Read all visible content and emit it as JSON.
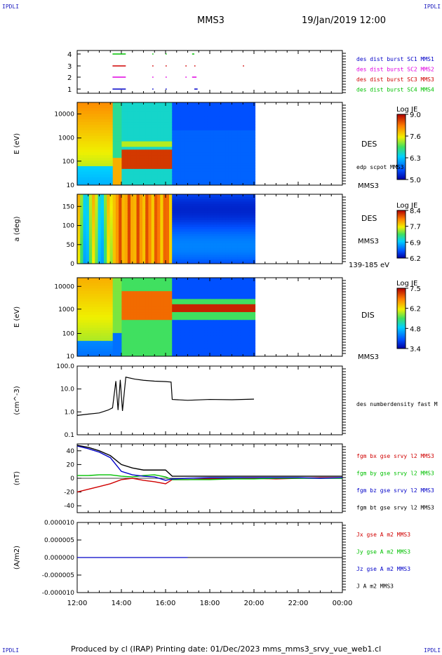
{
  "header": {
    "logo_left": "IPDLI",
    "logo_right": "IPDLI",
    "station": "MMS3",
    "datetime": "19/Jan/2019 12:00"
  },
  "footer": {
    "text": "Produced by cl (IRAP)   Printing date: 01/Dec/2023   mms_mms3_srvy_vue_web1.cl",
    "logo_left": "IPDLI",
    "logo_right": "IPDLI"
  },
  "colors": {
    "mms1": "#0000c8",
    "mms2": "#e000e0",
    "mms3": "#d00000",
    "mms4": "#00c000",
    "bx": "#d00000",
    "by": "#00c000",
    "bz": "#0000c8",
    "bt": "#000000"
  },
  "chart_data": [
    {
      "type": "scatter",
      "id": "burst",
      "yticks": [
        "1",
        "2",
        "3",
        "4"
      ],
      "legend": [
        "des dist burst SC1 MMS1",
        "des dist burst SC2 MMS2",
        "des dist burst SC3 MMS3",
        "des dist burst SC4 MMS4"
      ],
      "segments": [
        {
          "sc": 4,
          "start": 13.6,
          "end": 14.2
        },
        {
          "sc": 4,
          "start": 15.4,
          "end": 15.45
        },
        {
          "sc": 4,
          "start": 16.0,
          "end": 16.05
        },
        {
          "sc": 4,
          "start": 17.2,
          "end": 17.3
        },
        {
          "sc": 3,
          "start": 13.6,
          "end": 14.2
        },
        {
          "sc": 3,
          "start": 15.4,
          "end": 15.45
        },
        {
          "sc": 3,
          "start": 16.0,
          "end": 16.05
        },
        {
          "sc": 3,
          "start": 16.9,
          "end": 16.95
        },
        {
          "sc": 3,
          "start": 17.3,
          "end": 17.35
        },
        {
          "sc": 3,
          "start": 19.5,
          "end": 19.55
        },
        {
          "sc": 2,
          "start": 13.6,
          "end": 14.2
        },
        {
          "sc": 2,
          "start": 15.4,
          "end": 15.45
        },
        {
          "sc": 2,
          "start": 16.0,
          "end": 16.05
        },
        {
          "sc": 2,
          "start": 16.9,
          "end": 16.95
        },
        {
          "sc": 2,
          "start": 17.2,
          "end": 17.4
        },
        {
          "sc": 1,
          "start": 13.6,
          "end": 14.2
        },
        {
          "sc": 1,
          "start": 15.4,
          "end": 15.45
        },
        {
          "sc": 1,
          "start": 16.0,
          "end": 16.05
        },
        {
          "sc": 1,
          "start": 17.3,
          "end": 17.45
        }
      ]
    },
    {
      "type": "heatmap",
      "id": "des_energy",
      "ylabel": "E (eV)",
      "yticks": [
        "10",
        "100",
        "1000",
        "10000"
      ],
      "colorbar": {
        "title": "Log JE",
        "ticks": [
          "9.0",
          "7.6",
          "6.3",
          "5.0"
        ]
      },
      "right_labels": [
        "DES",
        "MMS3",
        "edp scpot MMS3"
      ]
    },
    {
      "type": "heatmap",
      "id": "des_pitch",
      "ylabel": "a (deg)",
      "yticks": [
        "0",
        "50",
        "100",
        "150"
      ],
      "colorbar": {
        "title": "Log JE",
        "ticks": [
          "8.4",
          "7.7",
          "6.9",
          "6.2"
        ]
      },
      "right_labels": [
        "DES",
        "MMS3",
        "139-185 eV"
      ]
    },
    {
      "type": "heatmap",
      "id": "dis_energy",
      "ylabel": "E (eV)",
      "yticks": [
        "10",
        "100",
        "1000",
        "10000"
      ],
      "colorbar": {
        "title": "Log JE",
        "ticks": [
          "7.5",
          "6.2",
          "4.8",
          "3.4"
        ]
      },
      "right_labels": [
        "DIS",
        "MMS3"
      ]
    },
    {
      "type": "line",
      "id": "density",
      "ylabel": "(cm^-3)",
      "yticks": [
        "0.1",
        "1.0",
        "10.0",
        "100.0"
      ],
      "ylim": [
        0.1,
        100
      ],
      "legend": [
        "des numberdensity fast M"
      ],
      "x": [
        12.0,
        12.5,
        13.0,
        13.4,
        13.6,
        13.75,
        13.85,
        13.95,
        14.05,
        14.2,
        14.6,
        15.0,
        15.5,
        16.0,
        16.25,
        16.3,
        17.0,
        18.0,
        19.0,
        20.0
      ],
      "y": [
        0.7,
        0.8,
        0.9,
        1.2,
        1.5,
        22,
        1.2,
        25,
        1.1,
        33,
        27,
        24,
        22,
        21,
        20,
        3.5,
        3.2,
        3.5,
        3.4,
        3.6
      ]
    },
    {
      "type": "line",
      "id": "fgm",
      "ylabel": "(nT)",
      "yticks": [
        "-40",
        "-20",
        "0",
        "20",
        "40"
      ],
      "ylim": [
        -50,
        50
      ],
      "legend": [
        "fgm bx gse srvy l2 MMS3",
        "fgm by gse srvy l2 MMS3",
        "fgm bz gse srvy l2 MMS3",
        "fgm bt gse srvy l2 MMS3"
      ],
      "x": [
        12.0,
        12.5,
        13.0,
        13.5,
        14.0,
        14.5,
        15.0,
        15.5,
        16.0,
        16.3,
        17.0,
        18.0,
        19.0,
        20.0,
        21.0,
        22.0,
        23.0,
        24.0
      ],
      "series": [
        {
          "name": "bx",
          "values": [
            -20,
            -16,
            -12,
            -8,
            -2,
            0,
            -3,
            -5,
            -8,
            -2,
            -2,
            -1,
            -1,
            0,
            -1,
            0,
            1,
            1
          ]
        },
        {
          "name": "by",
          "values": [
            4,
            4,
            5,
            5,
            3,
            2,
            4,
            5,
            2,
            -2,
            -2,
            -2,
            -1,
            -1,
            0,
            0,
            0,
            0
          ]
        },
        {
          "name": "bz",
          "values": [
            47,
            43,
            38,
            30,
            10,
            5,
            3,
            2,
            -3,
            -1,
            0,
            1,
            1,
            1,
            1,
            1,
            0,
            1
          ]
        },
        {
          "name": "bt",
          "values": [
            48,
            45,
            40,
            33,
            20,
            15,
            12,
            12,
            12,
            3,
            3,
            3,
            3,
            3,
            3,
            3,
            3,
            3
          ]
        }
      ]
    },
    {
      "type": "line",
      "id": "current",
      "ylabel": "(A/m2)",
      "yticks": [
        "-0.000010",
        "-0.000005",
        "0.000000",
        "0.000005",
        "0.000010"
      ],
      "ylim": [
        -1e-05,
        1e-05
      ],
      "legend": [
        "Jx gse A m2 MMS3",
        "Jy gse A m2 MMS3",
        "Jz gse A m2 MMS3",
        "J A m2 MMS3"
      ],
      "x": [
        12.0,
        13.0,
        14.0,
        15.0,
        16.0,
        16.3,
        17.0
      ],
      "y": [
        0,
        0,
        0,
        0,
        0,
        0,
        0
      ]
    }
  ],
  "time_axis": {
    "ticks": [
      "12:00",
      "14:00",
      "16:00",
      "18:00",
      "20:00",
      "22:00",
      "00:00"
    ]
  }
}
